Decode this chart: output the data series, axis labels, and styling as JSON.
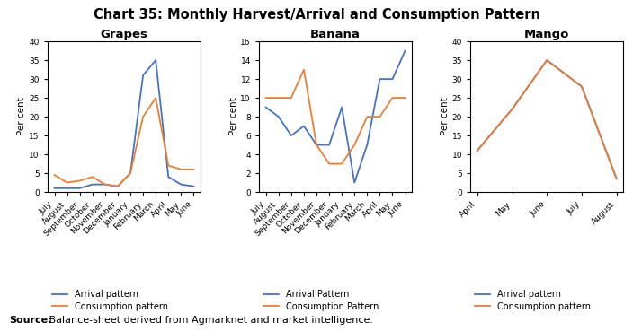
{
  "title": "Chart 35: Monthly Harvest/Arrival and Consumption Pattern",
  "source_bold": "Source:",
  "source_rest": " Balance-sheet derived from Agmarknet and market intelligence.",
  "grapes": {
    "title": "Grapes",
    "months": [
      "July",
      "August",
      "September",
      "October",
      "November",
      "December",
      "January",
      "February",
      "March",
      "April",
      "May",
      "June"
    ],
    "arrival": [
      1,
      1,
      1,
      2,
      2,
      1.5,
      5,
      31,
      35,
      4,
      2,
      1.5
    ],
    "consumption": [
      4.5,
      2.5,
      3,
      4,
      2,
      1.5,
      5,
      20,
      25,
      7,
      6,
      6
    ],
    "ylim": [
      0,
      40
    ],
    "yticks": [
      0,
      5,
      10,
      15,
      20,
      25,
      30,
      35,
      40
    ]
  },
  "banana": {
    "title": "Banana",
    "months": [
      "July",
      "August",
      "September",
      "October",
      "November",
      "December",
      "January",
      "February",
      "March",
      "April",
      "May",
      "June"
    ],
    "arrival": [
      9,
      8,
      6,
      7,
      5,
      5,
      9,
      1,
      5,
      12,
      12,
      15
    ],
    "consumption": [
      10,
      10,
      10,
      13,
      5,
      3,
      3,
      5,
      8,
      8,
      10,
      10
    ],
    "ylim": [
      0,
      16
    ],
    "yticks": [
      0,
      2,
      4,
      6,
      8,
      10,
      12,
      14,
      16
    ]
  },
  "mango": {
    "title": "Mango",
    "months": [
      "April",
      "May",
      "June",
      "July",
      "August"
    ],
    "arrival": [
      11,
      22,
      35,
      28,
      3.5
    ],
    "consumption": [
      11,
      22,
      35,
      28,
      3.5
    ],
    "ylim": [
      0,
      40
    ],
    "yticks": [
      0,
      5,
      10,
      15,
      20,
      25,
      30,
      35,
      40
    ]
  },
  "arrival_color": "#4472C4",
  "consumption_color": "#ED7D31",
  "ylabel": "Per cent",
  "legend_arrival_grapes": "Arrival pattern",
  "legend_consumption_grapes": "Consumption pattern",
  "legend_arrival_banana": "Arrival Pattern",
  "legend_consumption_banana": "Consumption Pattern",
  "legend_arrival_mango": "Arrival pattern",
  "legend_consumption_mango": "Consumption pattern",
  "title_fontsize": 10.5,
  "subtitle_fontsize": 9.5,
  "tick_fontsize": 6.5,
  "ylabel_fontsize": 7.5,
  "legend_fontsize": 7
}
